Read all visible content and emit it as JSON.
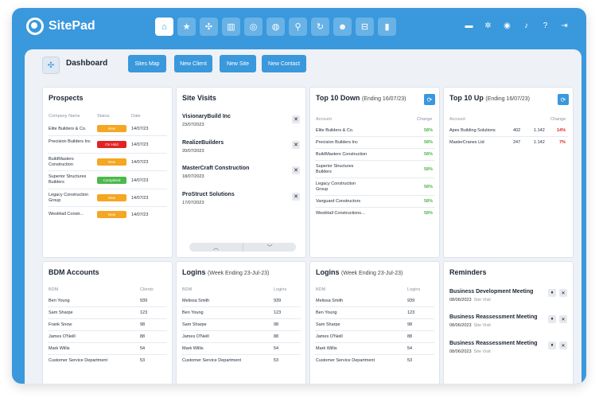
{
  "app": {
    "name": "SitePad"
  },
  "nav": {
    "icons": [
      "home-icon",
      "star-icon",
      "sites-icon",
      "building-icon",
      "target-icon",
      "globe-icon",
      "location-pin-icon",
      "tool-icon",
      "users-icon",
      "basket-icon",
      "bar-chart-icon"
    ],
    "right_icons": [
      "folder-icon",
      "gear-icon",
      "account-icon",
      "bell-icon",
      "help-icon",
      "logout-icon"
    ]
  },
  "toolbar": {
    "title": "Dashboard",
    "buttons": [
      "Sites Map",
      "New Client",
      "New Site",
      "New Contact"
    ]
  },
  "prospects": {
    "title": "Prospects",
    "headers": [
      "Company Name",
      "Status",
      "Date"
    ],
    "rows": [
      {
        "company": "Elite Builders & Co.",
        "status": "New",
        "status_color": "#f5a623",
        "date": "14/07/23"
      },
      {
        "company": "Precision Builders Inc",
        "status": "On Hold",
        "status_color": "#e02424",
        "date": "14/07/23"
      },
      {
        "company": "BuildMasters Construction",
        "status": "New",
        "status_color": "#f5a623",
        "date": "14/07/23"
      },
      {
        "company": "Superior Structures Builders",
        "status": "Completed",
        "status_color": "#4cb84c",
        "date": "14/07/23"
      },
      {
        "company": "Legacy Construction Group",
        "status": "New",
        "status_color": "#f5a623",
        "date": "14/07/23"
      },
      {
        "company": "WestHall Constr...",
        "status": "New",
        "status_color": "#f5a623",
        "date": "14/07/23"
      }
    ]
  },
  "site_visits": {
    "title": "Site Visits",
    "items": [
      {
        "name": "VisionaryBuild Inc",
        "date": "23/07/2023"
      },
      {
        "name": "RealizeBuilders",
        "date": "20/07/2023"
      },
      {
        "name": "MasterCraft Construction",
        "date": "18/07/2023"
      },
      {
        "name": "ProStruct Solutions",
        "date": "17/07/2023"
      }
    ]
  },
  "top_down": {
    "title": "Top 10 Down",
    "subtitle": "(Ending 16/07/23)",
    "headers": [
      "Account",
      "Change"
    ],
    "rows": [
      {
        "account": "Elite Builders & Co.",
        "change": "58%"
      },
      {
        "account": "Precision Builders Inc",
        "change": "58%"
      },
      {
        "account": "BuildMasters Construction",
        "change": "58%"
      },
      {
        "account": "Superior Structures Builders",
        "change": "58%"
      },
      {
        "account": "Legacy Construction Group",
        "change": "58%"
      },
      {
        "account": "Vanguard Constructors",
        "change": "58%"
      },
      {
        "account": "WestHall Constructions...",
        "change": "58%"
      }
    ],
    "change_color": "#4cb84c"
  },
  "top_up": {
    "title": "Top 10 Up",
    "subtitle": "(Ending 16/07/23)",
    "headers": [
      "Account",
      "Change"
    ],
    "rows": [
      {
        "account": "Apex Building Solutions",
        "a": "402",
        "b": "1.142",
        "change": "14%"
      },
      {
        "account": "MasterCranes Ltd",
        "a": "247",
        "b": "1.142",
        "change": "7%"
      }
    ],
    "change_color": "#e02424"
  },
  "bdm": {
    "title": "BDM Accounts",
    "headers": [
      "BDM",
      "Clients"
    ],
    "rows": [
      {
        "name": "Ben Young",
        "value": "939"
      },
      {
        "name": "Sam Sharpe",
        "value": "123"
      },
      {
        "name": "Frank Snow",
        "value": "98"
      },
      {
        "name": "James O'Neill",
        "value": "88"
      },
      {
        "name": "Mark Willis",
        "value": "54"
      },
      {
        "name": "Customer Service Department",
        "value": "53"
      }
    ]
  },
  "logins1": {
    "title": "Logins",
    "subtitle": "(Week Ending 23-Jul-23)",
    "headers": [
      "BDM",
      "Logins"
    ],
    "rows": [
      {
        "name": "Melissa Smith",
        "value": "939"
      },
      {
        "name": "Ben Young",
        "value": "123"
      },
      {
        "name": "Sam Sharpe",
        "value": "98"
      },
      {
        "name": "James O'Neill",
        "value": "88"
      },
      {
        "name": "Mark Willis",
        "value": "54"
      },
      {
        "name": "Customer Service Department",
        "value": "53"
      }
    ]
  },
  "logins2": {
    "title": "Logins",
    "subtitle": "(Week Ending 23-Jul-23)",
    "headers": [
      "BDM",
      "Logins"
    ],
    "rows": [
      {
        "name": "Melissa Smith",
        "value": "939"
      },
      {
        "name": "Ben Young",
        "value": "123"
      },
      {
        "name": "Sam Sharpe",
        "value": "98"
      },
      {
        "name": "James O'Neill",
        "value": "88"
      },
      {
        "name": "Mark Willis",
        "value": "54"
      },
      {
        "name": "Customer Service Department",
        "value": "53"
      }
    ]
  },
  "reminders": {
    "title": "Reminders",
    "items": [
      {
        "title": "Business Development Meeting",
        "date": "08/06/2023",
        "type": "Site Visit"
      },
      {
        "title": "Business Reassessment Meeting",
        "date": "08/06/2023",
        "type": "Site Visit"
      },
      {
        "title": "Business Reassessment Meeting",
        "date": "08/06/2023",
        "type": "Site Visit"
      }
    ]
  }
}
